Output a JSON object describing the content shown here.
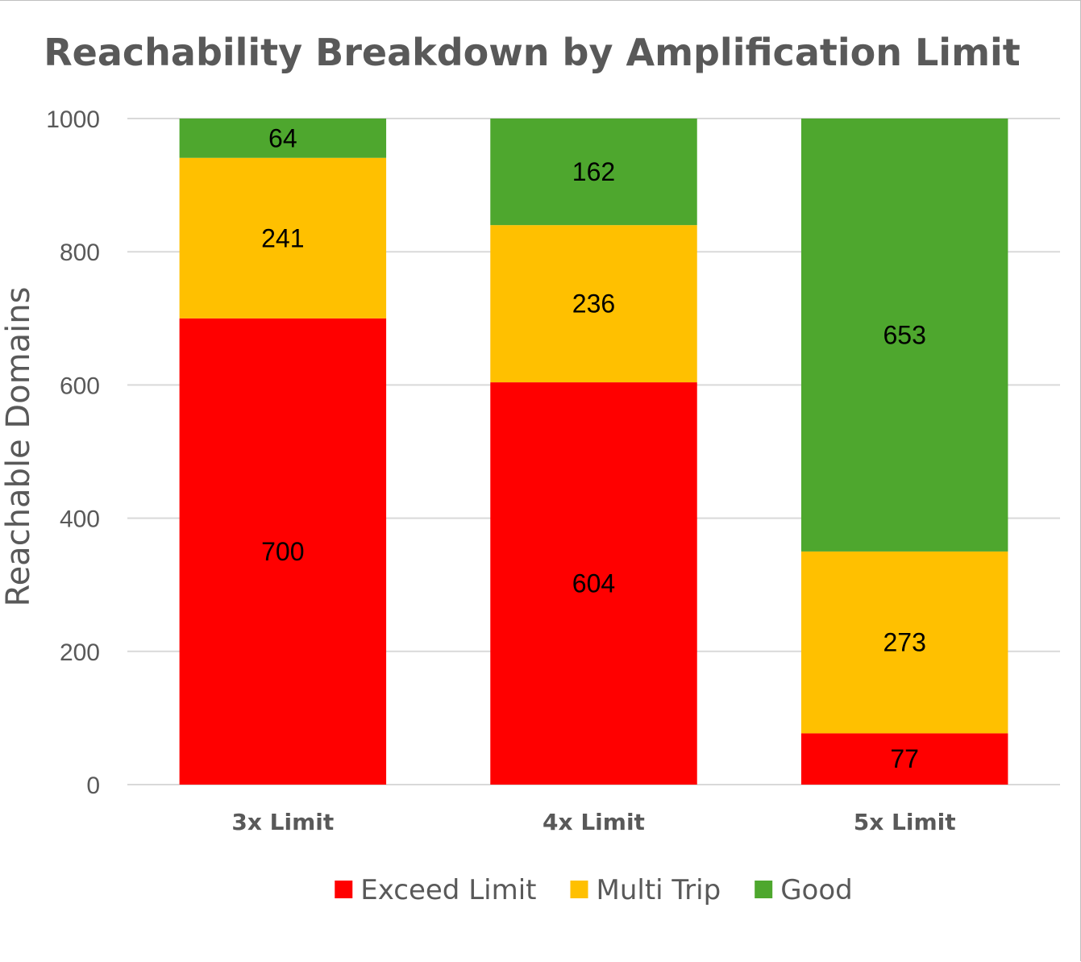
{
  "chart_data": {
    "type": "bar",
    "stacked": true,
    "title": "Reachability Breakdown by Amplification Limit",
    "xlabel": "",
    "ylabel": "Reachable Domains",
    "ylim": [
      0,
      1000
    ],
    "yticks": [
      "0",
      "200",
      "400",
      "600",
      "800",
      "1000"
    ],
    "grid": true,
    "legend_position": "bottom",
    "categories": [
      "3x Limit",
      "4x Limit",
      "5x Limit"
    ],
    "series": [
      {
        "name": "Exceed Limit",
        "color": "#ff0000",
        "values": [
          700,
          604,
          77
        ]
      },
      {
        "name": "Multi Trip",
        "color": "#ffc000",
        "values": [
          241,
          236,
          273
        ]
      },
      {
        "name": "Good",
        "color": "#4ea72e",
        "values": [
          64,
          162,
          653
        ]
      }
    ]
  }
}
